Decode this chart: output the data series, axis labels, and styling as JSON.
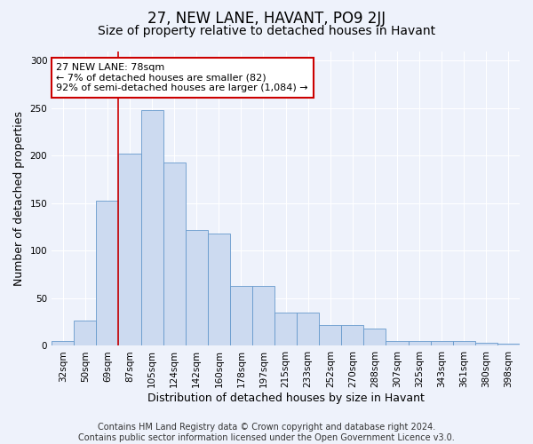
{
  "title": "27, NEW LANE, HAVANT, PO9 2JJ",
  "subtitle": "Size of property relative to detached houses in Havant",
  "xlabel": "Distribution of detached houses by size in Havant",
  "ylabel": "Number of detached properties",
  "categories": [
    "32sqm",
    "50sqm",
    "69sqm",
    "87sqm",
    "105sqm",
    "124sqm",
    "142sqm",
    "160sqm",
    "178sqm",
    "197sqm",
    "215sqm",
    "233sqm",
    "252sqm",
    "270sqm",
    "288sqm",
    "307sqm",
    "325sqm",
    "343sqm",
    "361sqm",
    "380sqm",
    "398sqm"
  ],
  "values": [
    5,
    27,
    153,
    202,
    248,
    193,
    122,
    118,
    63,
    63,
    35,
    35,
    22,
    22,
    18,
    5,
    5,
    5,
    5,
    3,
    2
  ],
  "bar_color": "#ccdaf0",
  "bar_edge_color": "#6699cc",
  "property_line_x": 2.5,
  "annotation_text": "27 NEW LANE: 78sqm\n← 7% of detached houses are smaller (82)\n92% of semi-detached houses are larger (1,084) →",
  "annotation_box_color": "white",
  "annotation_box_edge_color": "#cc0000",
  "property_line_color": "#cc0000",
  "ylim": [
    0,
    310
  ],
  "yticks": [
    0,
    50,
    100,
    150,
    200,
    250,
    300
  ],
  "footer_line1": "Contains HM Land Registry data © Crown copyright and database right 2024.",
  "footer_line2": "Contains public sector information licensed under the Open Government Licence v3.0.",
  "background_color": "#eef2fb",
  "plot_bg_color": "#eef2fb",
  "title_fontsize": 12,
  "subtitle_fontsize": 10,
  "tick_fontsize": 7.5,
  "label_fontsize": 9,
  "footer_fontsize": 7
}
